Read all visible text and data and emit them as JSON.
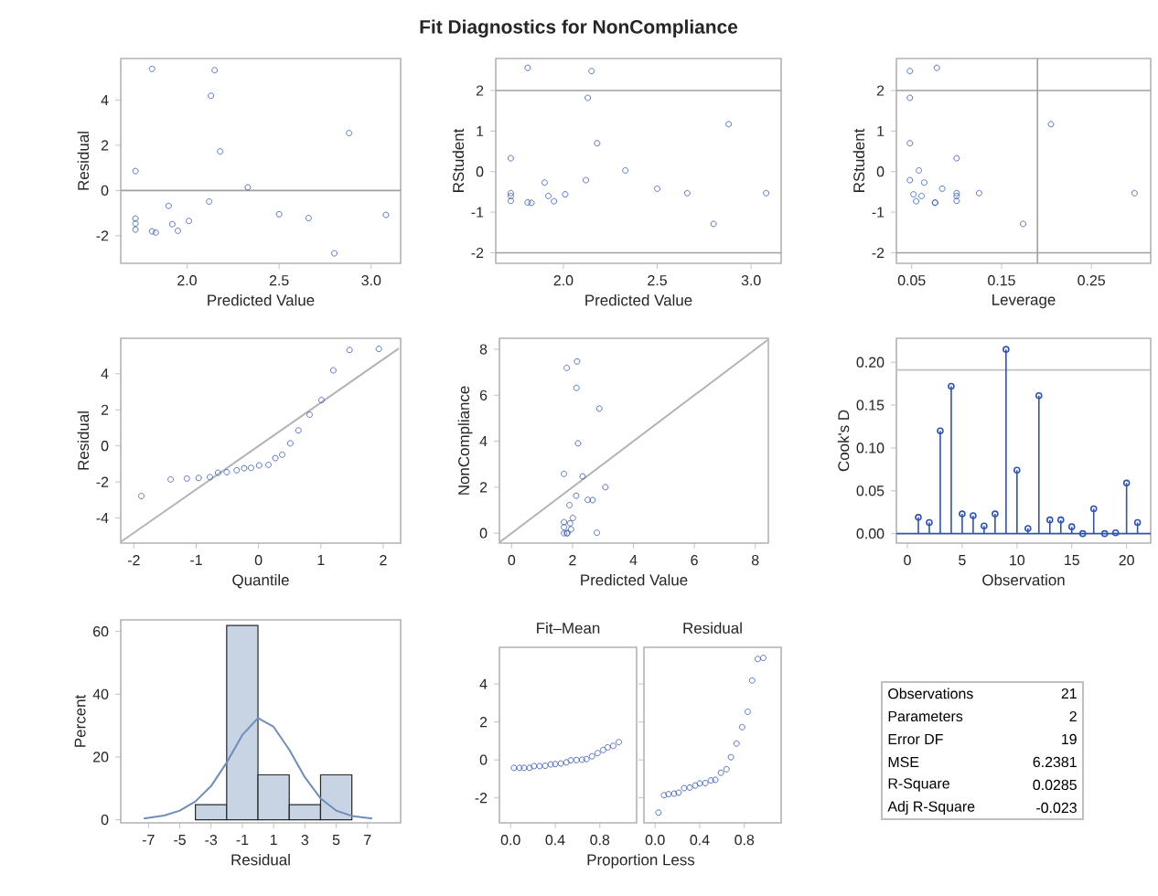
{
  "chart_data": [
    {
      "type": "scatter",
      "xlabel": "Predicted Value",
      "ylabel": "Residual",
      "marker": "circle",
      "xlim": [
        1.64,
        3.16
      ],
      "ylim": [
        -3.22,
        5.84
      ],
      "xticks": [
        {
          "value": 2,
          "label": "2.0"
        },
        2.5,
        {
          "value": 3,
          "label": "3.0"
        }
      ],
      "yticks": [
        -2,
        0,
        2,
        4
      ],
      "x": [
        1.72,
        1.72,
        1.72,
        1.72,
        1.81,
        1.81,
        1.83,
        1.9,
        1.92,
        1.95,
        2.01,
        2.12,
        2.13,
        2.15,
        2.18,
        2.33,
        2.5,
        2.66,
        2.8,
        2.88,
        3.08
      ],
      "values": [
        0.86,
        -1.24,
        -1.46,
        -1.73,
        5.38,
        -1.81,
        -1.86,
        -0.68,
        -1.49,
        -1.78,
        -1.35,
        -0.49,
        4.19,
        5.32,
        1.73,
        0.14,
        -1.05,
        -1.22,
        -2.78,
        2.54,
        -1.08
      ],
      "color": "#2f54b0",
      "ref_lines": [
        {
          "axis": "y",
          "value": 0,
          "color": "#a0a0a0"
        }
      ]
    },
    {
      "type": "scatter",
      "title": "Fit Diagnostics for NonCompliance",
      "xlabel": "Predicted Value",
      "ylabel": "RStudent",
      "marker": "circle",
      "xlim": [
        1.64,
        3.16
      ],
      "ylim": [
        -2.26,
        2.79
      ],
      "xticks": [
        {
          "value": 2,
          "label": "2.0"
        },
        2.5,
        {
          "value": 3,
          "label": "3.0"
        }
      ],
      "yticks": [
        -2,
        -1,
        0,
        1,
        2
      ],
      "x": [
        1.72,
        1.72,
        1.72,
        1.72,
        1.81,
        1.81,
        1.83,
        1.9,
        1.92,
        1.95,
        2.01,
        2.12,
        2.13,
        2.15,
        2.18,
        2.33,
        2.5,
        2.66,
        2.8,
        2.88,
        3.08
      ],
      "values": [
        0.33,
        -0.53,
        -0.6,
        -0.72,
        2.56,
        -0.76,
        -0.77,
        -0.27,
        -0.6,
        -0.73,
        -0.56,
        -0.21,
        1.82,
        2.48,
        0.7,
        0.03,
        -0.42,
        -0.53,
        -1.29,
        1.17,
        -0.53
      ],
      "color": "#2f54b0",
      "ref_lines": [
        {
          "axis": "y",
          "value": 2,
          "color": "#a0a0a0"
        },
        {
          "axis": "y",
          "value": -2,
          "color": "#a0a0a0"
        }
      ]
    },
    {
      "type": "scatter",
      "xlabel": "Leverage",
      "ylabel": "RStudent",
      "marker": "circle",
      "xlim": [
        0.033,
        0.316
      ],
      "ylim": [
        -2.26,
        2.79
      ],
      "xticks": [
        0.05,
        0.15,
        0.25
      ],
      "yticks": [
        -2,
        -1,
        0,
        1,
        2
      ],
      "x": [
        0.048,
        0.048,
        0.048,
        0.048,
        0.052,
        0.055,
        0.058,
        0.061,
        0.064,
        0.078,
        0.076,
        0.076,
        0.084,
        0.1,
        0.1,
        0.1,
        0.1,
        0.125,
        0.174,
        0.205,
        0.298
      ],
      "values": [
        2.48,
        1.82,
        0.7,
        -0.21,
        -0.56,
        -0.73,
        0.03,
        -0.6,
        -0.27,
        2.56,
        -0.76,
        -0.77,
        -0.42,
        0.33,
        -0.53,
        -0.6,
        -0.72,
        -0.53,
        -1.29,
        1.17,
        -0.53
      ],
      "color": "#2f54b0",
      "ref_lines": [
        {
          "axis": "y",
          "value": 2,
          "color": "#a0a0a0"
        },
        {
          "axis": "y",
          "value": -2,
          "color": "#a0a0a0"
        },
        {
          "axis": "x",
          "value": 0.19,
          "color": "#a0a0a0"
        }
      ]
    },
    {
      "type": "scatter",
      "xlabel": "Quantile",
      "ylabel": "Residual",
      "marker": "circle",
      "xlim": [
        -2.21,
        2.28
      ],
      "ylim": [
        -5.39,
        5.97
      ],
      "xticks": [
        -2,
        -1,
        0,
        1,
        2
      ],
      "yticks": [
        -4,
        -2,
        0,
        2,
        4
      ],
      "series": [
        {
          "type": "scatter",
          "color": "#2f54b0",
          "x": [
            -1.88,
            -1.41,
            -1.15,
            -0.96,
            -0.78,
            -0.65,
            -0.51,
            -0.35,
            -0.23,
            -0.12,
            0.01,
            0.16,
            0.27,
            0.38,
            0.51,
            0.64,
            0.82,
            1.01,
            1.2,
            1.46,
            1.93
          ],
          "values": [
            -2.78,
            -1.86,
            -1.81,
            -1.78,
            -1.73,
            -1.49,
            -1.46,
            -1.35,
            -1.24,
            -1.22,
            -1.08,
            -1.05,
            -0.68,
            -0.49,
            0.14,
            0.86,
            1.73,
            2.54,
            4.19,
            5.32,
            5.38
          ]
        },
        {
          "type": "line",
          "marker": "none",
          "color": "#b4b4b4",
          "x": [
            -2.2,
            2.25
          ],
          "values": [
            -5.3,
            5.4
          ]
        }
      ]
    },
    {
      "type": "scatter",
      "xlabel": "Predicted Value",
      "ylabel": "NonCompliance",
      "marker": "circle",
      "xlim": [
        -0.4,
        8.43
      ],
      "ylim": [
        -0.43,
        8.48
      ],
      "xticks": [
        0,
        2,
        4,
        6,
        8
      ],
      "yticks": [
        0,
        2,
        4,
        6,
        8
      ],
      "series": [
        {
          "type": "scatter",
          "color": "#2f54b0",
          "x": [
            1.72,
            1.72,
            1.72,
            1.72,
            1.81,
            1.81,
            1.83,
            1.9,
            1.92,
            1.95,
            2.01,
            2.12,
            2.13,
            2.15,
            2.18,
            2.33,
            2.5,
            2.66,
            2.8,
            2.88,
            3.08
          ],
          "values": [
            2.58,
            0.48,
            0.26,
            0,
            7.19,
            0,
            0,
            1.22,
            0.43,
            0.17,
            0.66,
            1.63,
            6.32,
            7.47,
            3.91,
            2.47,
            1.45,
            1.44,
            0.02,
            5.42,
            2.0
          ]
        },
        {
          "type": "line",
          "marker": "none",
          "color": "#b4b4b4",
          "x": [
            -0.4,
            8.4
          ],
          "values": [
            -0.4,
            8.4
          ]
        }
      ]
    },
    {
      "type": "lollipop",
      "xlabel": "Observation",
      "ylabel": "Cook's D",
      "marker": "circle",
      "xlim": [
        -1,
        22.2
      ],
      "ylim": [
        -0.011,
        0.228
      ],
      "xticks": [
        0,
        5,
        10,
        15,
        20
      ],
      "yticks": [
        {
          "value": 0,
          "label": "0.00"
        },
        0.05,
        {
          "value": 0.1,
          "label": "0.10"
        },
        0.15,
        {
          "value": 0.2,
          "label": "0.20"
        }
      ],
      "x": [
        1,
        2,
        3,
        4,
        5,
        6,
        7,
        8,
        9,
        10,
        11,
        12,
        13,
        14,
        15,
        16,
        17,
        18,
        19,
        20,
        21
      ],
      "values": [
        0.019,
        0.013,
        0.12,
        0.172,
        0.023,
        0.021,
        0.009,
        0.023,
        0.215,
        0.074,
        0.006,
        0.161,
        0.016,
        0.016,
        0.008,
        0.0,
        0.029,
        0.0,
        0.001,
        0.059,
        0.013
      ],
      "color": "#2f54b0",
      "ref_lines": [
        {
          "axis": "y",
          "value": 0.191,
          "color": "#c0c0c0"
        },
        {
          "axis": "y",
          "value": 0,
          "color": "#2f54b0"
        }
      ]
    },
    {
      "type": "histogram",
      "xlabel": "Residual",
      "ylabel": "Percent",
      "xlim": [
        -8.77,
        9.12
      ],
      "ylim": [
        -1,
        63.7
      ],
      "xticks": [
        -7,
        -5,
        -3,
        -1,
        1,
        3,
        5,
        7
      ],
      "yticks": [
        0,
        20,
        40,
        60
      ],
      "series": [
        {
          "type": "histogram",
          "color": "#c8d3e3",
          "bins": [
            -4,
            -2,
            0,
            2,
            4,
            6
          ],
          "values": [
            4.76,
            61.9,
            14.29,
            4.76,
            14.29
          ]
        },
        {
          "type": "line",
          "marker": "none",
          "color": "#6f8db8",
          "x": [
            -7.3,
            -6,
            -5,
            -4,
            -3,
            -2,
            -1,
            0,
            1,
            2,
            3,
            4,
            5,
            6,
            7.3
          ],
          "values": [
            0.4,
            1.3,
            2.9,
            5.8,
            10.7,
            18.2,
            27,
            32.4,
            29.6,
            22.3,
            13.5,
            6.8,
            2.9,
            1.2,
            0.4
          ]
        }
      ]
    },
    {
      "type": "scatter",
      "title": "Fit–Mean",
      "xlabel": "Proportion Less",
      "marker": "circle",
      "xlim": [
        -0.1,
        1.13
      ],
      "ylim": [
        -3.32,
        5.94
      ],
      "xticks": [
        {
          "value": 0,
          "label": "0.0"
        },
        0.4,
        0.8
      ],
      "yticks": [
        -2,
        0,
        2,
        4
      ],
      "x": [
        0.03,
        0.08,
        0.12,
        0.17,
        0.21,
        0.26,
        0.31,
        0.36,
        0.4,
        0.45,
        0.5,
        0.54,
        0.59,
        0.64,
        0.68,
        0.73,
        0.78,
        0.83,
        0.87,
        0.92,
        0.97
      ],
      "values": [
        -0.42,
        -0.42,
        -0.42,
        -0.42,
        -0.33,
        -0.33,
        -0.31,
        -0.24,
        -0.22,
        -0.19,
        -0.13,
        -0.02,
        -0.01,
        0.01,
        0.04,
        0.19,
        0.36,
        0.52,
        0.66,
        0.74,
        0.94
      ],
      "color": "#2f54b0"
    },
    {
      "type": "scatter",
      "title": "Residual",
      "marker": "circle",
      "tick_labels": "x",
      "xlim": [
        -0.1,
        1.13
      ],
      "ylim": [
        -3.32,
        5.94
      ],
      "xticks": [
        {
          "value": 0,
          "label": "0.0"
        },
        0.4,
        0.8
      ],
      "yticks": [
        -2,
        0,
        2,
        4
      ],
      "x": [
        0.03,
        0.08,
        0.12,
        0.17,
        0.21,
        0.26,
        0.31,
        0.36,
        0.4,
        0.45,
        0.5,
        0.54,
        0.59,
        0.64,
        0.68,
        0.73,
        0.78,
        0.83,
        0.87,
        0.92,
        0.97
      ],
      "values": [
        -2.78,
        -1.86,
        -1.81,
        -1.78,
        -1.73,
        -1.49,
        -1.46,
        -1.35,
        -1.24,
        -1.22,
        -1.08,
        -1.05,
        -0.68,
        -0.49,
        0.14,
        0.86,
        1.73,
        2.54,
        4.19,
        5.32,
        5.38
      ],
      "color": "#2f54b0"
    },
    {
      "type": "other",
      "categories": [
        "Observations",
        "Parameters",
        "Error DF",
        "MSE",
        "R-Square",
        "Adj R-Square"
      ],
      "values": [
        21,
        2,
        19,
        6.2381,
        0.0285,
        -0.023
      ],
      "data_labels": true
    }
  ]
}
